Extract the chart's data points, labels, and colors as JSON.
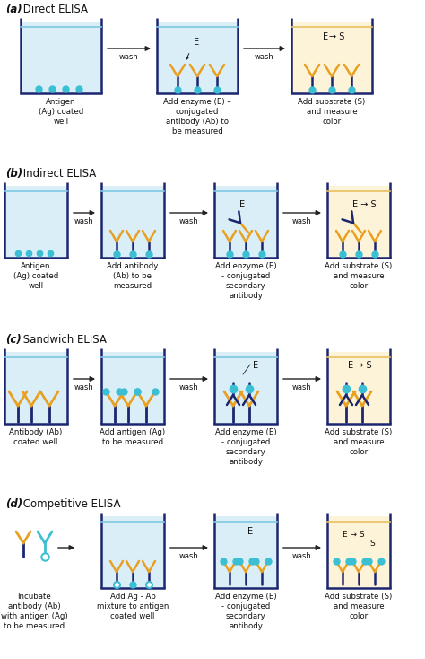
{
  "well_fill_blue": "#daeef7",
  "well_fill_yellow": "#fdf3d8",
  "well_border": "#1a1a2e",
  "water_line_blue": "#7ec8e3",
  "water_line_yellow": "#e8c060",
  "dark": "#1c2670",
  "gold": "#e8a020",
  "cyan": "#3bbfd4",
  "arrow_color": "#222222",
  "text_color": "#111111",
  "bg_color": "#ffffff",
  "section_labels": [
    "(a)",
    "(b)",
    "(c)",
    "(d)"
  ],
  "section_titles": [
    "Direct ELISA",
    "Indirect ELISA",
    "Sandwich ELISA",
    "Competitive ELISA"
  ]
}
